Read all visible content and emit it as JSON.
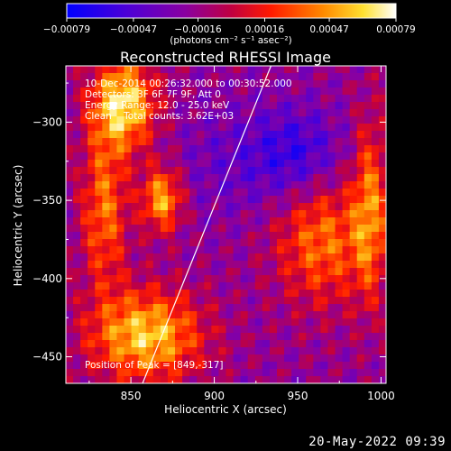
{
  "chart_data": {
    "type": "heatmap",
    "title": "Reconstructed RHESSI Image",
    "xlabel": "Heliocentric X (arcsec)",
    "ylabel": "Heliocentric Y (arcsec)",
    "xlim": [
      811,
      1003
    ],
    "ylim": [
      -467,
      -264
    ],
    "x_ticks": [
      850,
      900,
      950,
      1000
    ],
    "y_ticks": [
      -300,
      -350,
      -400,
      -450
    ],
    "x_tick_labels": [
      "850",
      "900",
      "950",
      "1000"
    ],
    "y_tick_labels": [
      "−300",
      "−350",
      "−400",
      "−450"
    ],
    "colorbar": {
      "range": [
        -0.00079,
        0.00079
      ],
      "tick_values": [
        -0.00079,
        -0.00047,
        -0.00016,
        0.00016,
        0.00047,
        0.00079
      ],
      "tick_labels": [
        "−0.00079",
        "−0.00047",
        "−0.00016",
        "0.00016",
        "0.00047",
        "0.00079"
      ],
      "unit_label": "(photons cm⁻² s⁻¹ asec⁻²)",
      "colormap": "blue-purple-red-yellow-white"
    },
    "annotations": [
      "10-Dec-2014 00:26:32.000 to 00:30:52.000",
      "Detectors: 3F 6F 7F 9F, Att 0",
      "Energy Range: 12.0 - 25.0 keV",
      "Clean    Total counts: 3.62E+03"
    ],
    "peak_label": "Position of Peak = [849,-317]",
    "peak_position": [
      849,
      -317
    ],
    "limb_line": [
      [
        857,
        -467
      ],
      [
        934,
        -264
      ]
    ]
  },
  "footer": {
    "timestamp": "20-May-2022 09:39"
  }
}
